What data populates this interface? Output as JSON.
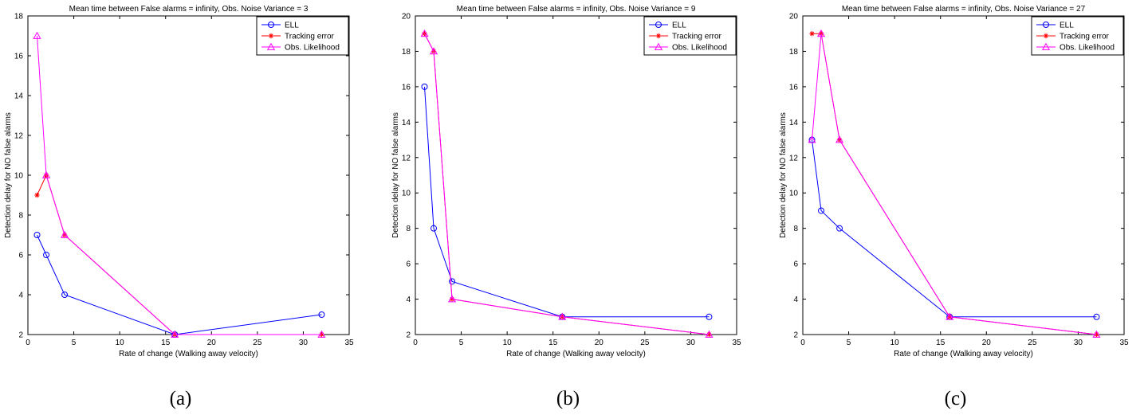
{
  "colors": {
    "ELL": "#0000ff",
    "Tracking error": "#ff0000",
    "Obs. Likelihood": "#ff00ff"
  },
  "chart_data": [
    {
      "type": "line",
      "panel_label": "(a)",
      "title": "Mean time between False alarms = infinity, Obs. Noise Variance = 3",
      "xlabel": "Rate of change (Walking away velocity)",
      "ylabel": "Detection delay for NO false alarms",
      "xlim": [
        0,
        35
      ],
      "ylim": [
        2,
        18
      ],
      "xticks": [
        0,
        5,
        10,
        15,
        20,
        25,
        30,
        35
      ],
      "yticks": [
        2,
        4,
        6,
        8,
        10,
        12,
        14,
        16,
        18
      ],
      "legend_position": "top-right",
      "series": [
        {
          "name": "ELL",
          "marker": "circle",
          "x": [
            1,
            2,
            4,
            16,
            32
          ],
          "y": [
            7,
            6,
            4,
            2,
            3
          ]
        },
        {
          "name": "Tracking error",
          "marker": "star",
          "x": [
            1,
            2,
            4,
            16,
            32
          ],
          "y": [
            9,
            10,
            7,
            2,
            2
          ]
        },
        {
          "name": "Obs. Likelihood",
          "marker": "triangle",
          "x": [
            1,
            2,
            4,
            16,
            32
          ],
          "y": [
            17,
            10,
            7,
            2,
            2
          ]
        }
      ]
    },
    {
      "type": "line",
      "panel_label": "(b)",
      "title": "Mean time between False alarms = infinity, Obs. Noise Variance = 9",
      "xlabel": "Rate of change (Walking away velocity)",
      "ylabel": "Detection delay for NO false alarms",
      "xlim": [
        0,
        35
      ],
      "ylim": [
        2,
        20
      ],
      "xticks": [
        0,
        5,
        10,
        15,
        20,
        25,
        30,
        35
      ],
      "yticks": [
        2,
        4,
        6,
        8,
        10,
        12,
        14,
        16,
        18,
        20
      ],
      "legend_position": "top-right",
      "series": [
        {
          "name": "ELL",
          "marker": "circle",
          "x": [
            1,
            2,
            4,
            16,
            32
          ],
          "y": [
            16,
            8,
            5,
            3,
            3
          ]
        },
        {
          "name": "Tracking error",
          "marker": "star",
          "x": [
            1,
            2,
            4,
            16,
            32
          ],
          "y": [
            19,
            18,
            4,
            3,
            2
          ]
        },
        {
          "name": "Obs. Likelihood",
          "marker": "triangle",
          "x": [
            1,
            2,
            4,
            16,
            32
          ],
          "y": [
            19,
            18,
            4,
            3,
            2
          ]
        }
      ]
    },
    {
      "type": "line",
      "panel_label": "(c)",
      "title": "Mean time between False alarms = infinity, Obs. Noise Variance = 27",
      "xlabel": "Rate of change (Walking away velocity)",
      "ylabel": "Detection delay for NO false alarms",
      "xlim": [
        0,
        35
      ],
      "ylim": [
        2,
        20
      ],
      "xticks": [
        0,
        5,
        10,
        15,
        20,
        25,
        30,
        35
      ],
      "yticks": [
        2,
        4,
        6,
        8,
        10,
        12,
        14,
        16,
        18,
        20
      ],
      "legend_position": "top-right",
      "series": [
        {
          "name": "ELL",
          "marker": "circle",
          "x": [
            1,
            2,
            4,
            16,
            32
          ],
          "y": [
            13,
            9,
            8,
            3,
            3
          ]
        },
        {
          "name": "Tracking error",
          "marker": "star",
          "x": [
            1,
            2,
            4,
            16,
            32
          ],
          "y": [
            19,
            19,
            13,
            3,
            2
          ]
        },
        {
          "name": "Obs. Likelihood",
          "marker": "triangle",
          "x": [
            1,
            2,
            4,
            16,
            32
          ],
          "y": [
            13,
            19,
            13,
            3,
            2
          ]
        }
      ]
    }
  ]
}
